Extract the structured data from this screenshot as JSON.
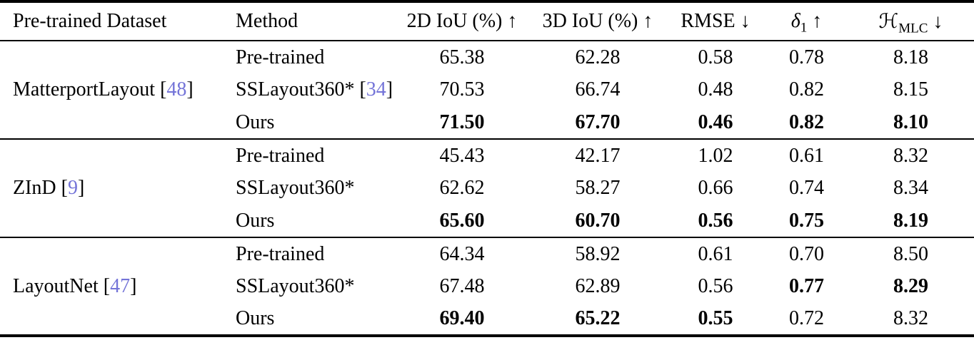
{
  "table": {
    "citation_color": "#7474d8",
    "brackets": {
      "open": "[",
      "close": "]"
    },
    "header": {
      "dataset": "Pre-trained Dataset",
      "method": "Method",
      "iou2d": "2D IoU (%)",
      "iou3d": "3D IoU (%)",
      "rmse": "RMSE",
      "delta_base": "δ",
      "delta_sub": "1",
      "hmlc_base": "ℋ",
      "hmlc_sub": "MLC",
      "arrow_up": "↑",
      "arrow_down": "↓"
    },
    "groups": [
      {
        "dataset": "MatterportLayout",
        "citation": "48",
        "rows": [
          {
            "method": "Pre-trained",
            "citation": null,
            "values": [
              "65.38",
              "62.28",
              "0.58",
              "0.78",
              "8.18"
            ],
            "bold": [
              false,
              false,
              false,
              false,
              false
            ]
          },
          {
            "method": "SSLayout360*",
            "citation": "34",
            "values": [
              "70.53",
              "66.74",
              "0.48",
              "0.82",
              "8.15"
            ],
            "bold": [
              false,
              false,
              false,
              false,
              false
            ]
          },
          {
            "method": "Ours",
            "citation": null,
            "values": [
              "71.50",
              "67.70",
              "0.46",
              "0.82",
              "8.10"
            ],
            "bold": [
              true,
              true,
              true,
              true,
              true
            ]
          }
        ]
      },
      {
        "dataset": "ZInD",
        "citation": "9",
        "rows": [
          {
            "method": "Pre-trained",
            "citation": null,
            "values": [
              "45.43",
              "42.17",
              "1.02",
              "0.61",
              "8.32"
            ],
            "bold": [
              false,
              false,
              false,
              false,
              false
            ]
          },
          {
            "method": "SSLayout360*",
            "citation": null,
            "values": [
              "62.62",
              "58.27",
              "0.66",
              "0.74",
              "8.34"
            ],
            "bold": [
              false,
              false,
              false,
              false,
              false
            ]
          },
          {
            "method": "Ours",
            "citation": null,
            "values": [
              "65.60",
              "60.70",
              "0.56",
              "0.75",
              "8.19"
            ],
            "bold": [
              true,
              true,
              true,
              true,
              true
            ]
          }
        ]
      },
      {
        "dataset": "LayoutNet",
        "citation": "47",
        "rows": [
          {
            "method": "Pre-trained",
            "citation": null,
            "values": [
              "64.34",
              "58.92",
              "0.61",
              "0.70",
              "8.50"
            ],
            "bold": [
              false,
              false,
              false,
              false,
              false
            ]
          },
          {
            "method": "SSLayout360*",
            "citation": null,
            "values": [
              "67.48",
              "62.89",
              "0.56",
              "0.77",
              "8.29"
            ],
            "bold": [
              false,
              false,
              false,
              true,
              true
            ]
          },
          {
            "method": "Ours",
            "citation": null,
            "values": [
              "69.40",
              "65.22",
              "0.55",
              "0.72",
              "8.32"
            ],
            "bold": [
              true,
              true,
              true,
              false,
              false
            ]
          }
        ]
      }
    ]
  }
}
